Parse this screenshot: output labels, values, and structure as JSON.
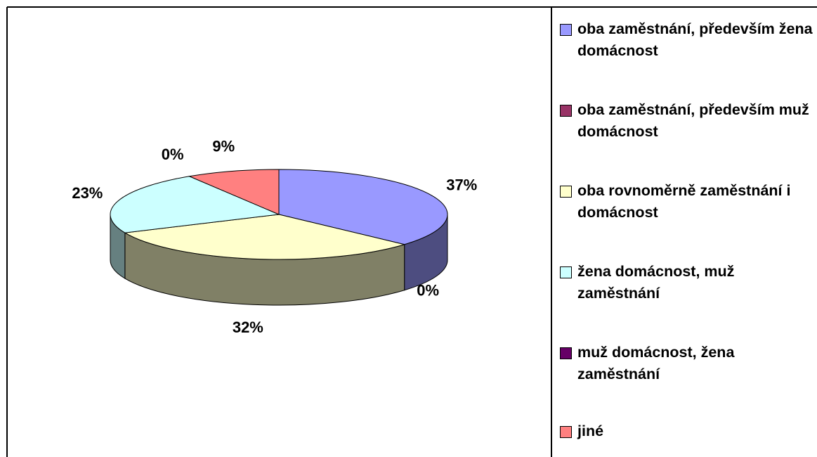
{
  "chart_data": {
    "type": "pie",
    "categories": [
      "oba zaměstnání, především žena domácnost",
      "oba zaměstnání, především muž domácnost",
      "oba rovnoměrně zaměstnání i domácnost",
      "žena domácnost, muž zaměstnání",
      "muž domácnost, žena zaměstnání",
      "jiné"
    ],
    "values": [
      37,
      0,
      32,
      23,
      0,
      9
    ],
    "value_labels": [
      "37%",
      "0%",
      "32%",
      "23%",
      "0%",
      "9%"
    ],
    "colors": [
      "#9999ff",
      "#993366",
      "#ffffcc",
      "#ccffff",
      "#660066",
      "#ff8080"
    ],
    "legend": "right"
  }
}
